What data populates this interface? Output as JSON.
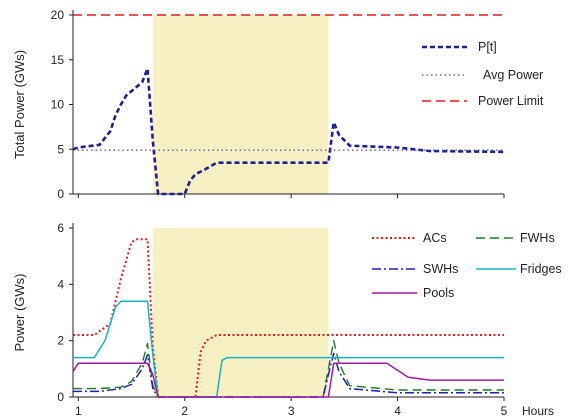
{
  "chart_data": [
    {
      "type": "line",
      "title": "",
      "xlabel": "",
      "ylabel": "Total Power (GWs)",
      "xlim": [
        0.95,
        5.0
      ],
      "ylim": [
        0,
        20
      ],
      "yticks": [
        0,
        5,
        10,
        15,
        20
      ],
      "grid": false,
      "legend_position": "right",
      "highlight": {
        "x_start": 1.7,
        "x_end": 3.35,
        "color": "#f7f0c2"
      },
      "series": [
        {
          "name": "P[t]",
          "color": "#1f1f8f",
          "style": "dashed-bold",
          "x": [
            0.95,
            1.0,
            1.2,
            1.3,
            1.35,
            1.4,
            1.45,
            1.5,
            1.55,
            1.6,
            1.65,
            1.7,
            1.75,
            1.8,
            2.0,
            2.05,
            2.1,
            2.2,
            2.3,
            3.35,
            3.4,
            3.45,
            3.55,
            4.0,
            4.3,
            5.0
          ],
          "y": [
            5,
            5.2,
            5.5,
            7,
            8.8,
            10,
            11,
            11.5,
            12,
            12.5,
            14,
            6,
            0,
            0,
            0,
            1.5,
            2.2,
            2.8,
            3.5,
            3.5,
            8,
            6.6,
            5.4,
            5.2,
            4.8,
            4.7
          ]
        },
        {
          "name": "Avg Power",
          "color": "#4a4ab0",
          "style": "dotted",
          "x": [
            0.95,
            5.0
          ],
          "y": [
            4.9,
            4.9
          ]
        },
        {
          "name": "Power Limit",
          "color": "#e21b1b",
          "style": "dashed",
          "x": [
            0.95,
            5.0
          ],
          "y": [
            20,
            20
          ]
        }
      ]
    },
    {
      "type": "line",
      "title": "",
      "xlabel": "Hours",
      "ylabel": "Power (GWs)",
      "xlim": [
        0.95,
        5.0
      ],
      "ylim": [
        0,
        6
      ],
      "xticks": [
        1,
        2,
        3,
        4,
        5
      ],
      "yticks": [
        0,
        2,
        4,
        6
      ],
      "grid": false,
      "legend_position": "top-right",
      "highlight": {
        "x_start": 1.7,
        "x_end": 3.35,
        "color": "#f7f0c2"
      },
      "series": [
        {
          "name": "ACs",
          "color": "#e21b1b",
          "style": "dotted",
          "x": [
            0.95,
            1.15,
            1.3,
            1.4,
            1.5,
            1.55,
            1.6,
            1.65,
            1.7,
            1.75,
            2.1,
            2.15,
            2.2,
            2.3,
            5.0
          ],
          "y": [
            2.2,
            2.2,
            2.6,
            4.2,
            5.5,
            5.6,
            5.6,
            5.6,
            1.8,
            0,
            0,
            1.6,
            2.0,
            2.2,
            2.2
          ]
        },
        {
          "name": "FWHs",
          "color": "#1e7a1e",
          "style": "dashed",
          "x": [
            0.95,
            1.2,
            1.4,
            1.5,
            1.6,
            1.65,
            1.7,
            1.75,
            3.3,
            3.35,
            3.4,
            3.45,
            3.55,
            4.0,
            5.0
          ],
          "y": [
            0.3,
            0.3,
            0.35,
            0.55,
            1.2,
            1.9,
            0.4,
            0,
            0,
            1.0,
            2.0,
            1.2,
            0.4,
            0.25,
            0.25
          ]
        },
        {
          "name": "SWHs",
          "color": "#1f1fb0",
          "style": "dashdot",
          "x": [
            0.95,
            1.2,
            1.4,
            1.5,
            1.6,
            1.65,
            1.7,
            1.75,
            3.3,
            3.35,
            3.4,
            3.45,
            3.55,
            4.0,
            5.0
          ],
          "y": [
            0.2,
            0.2,
            0.3,
            0.45,
            1.0,
            1.5,
            0.3,
            0,
            0,
            0.8,
            1.55,
            0.9,
            0.3,
            0.15,
            0.15
          ]
        },
        {
          "name": "Fridges",
          "color": "#17b3c2",
          "style": "solid",
          "x": [
            0.95,
            1.15,
            1.25,
            1.35,
            1.4,
            1.65,
            1.7,
            1.75,
            2.3,
            2.35,
            2.4,
            5.0
          ],
          "y": [
            1.4,
            1.4,
            2.0,
            3.2,
            3.4,
            3.4,
            1.5,
            0,
            0,
            1.3,
            1.4,
            1.4
          ]
        },
        {
          "name": "Pools",
          "color": "#a11aa1",
          "style": "solid",
          "x": [
            0.95,
            1.0,
            1.1,
            1.6,
            1.65,
            1.7,
            1.75,
            3.35,
            3.4,
            3.45,
            3.9,
            4.1,
            4.3,
            5.0
          ],
          "y": [
            0.9,
            1.2,
            1.2,
            1.2,
            1.2,
            0.8,
            0,
            0,
            1.2,
            1.2,
            1.2,
            0.7,
            0.6,
            0.6
          ]
        }
      ]
    }
  ]
}
